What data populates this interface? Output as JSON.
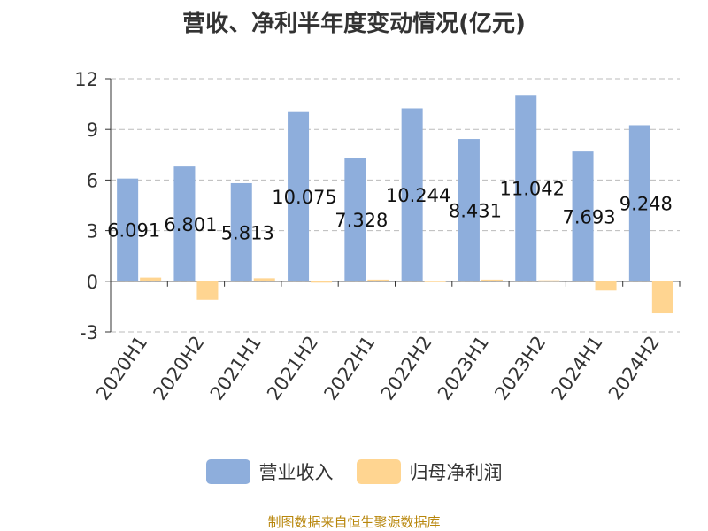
{
  "chart_data": {
    "type": "bar",
    "title": "营收、净利半年度变动情况(亿元)",
    "categories": [
      "2020H1",
      "2020H2",
      "2021H1",
      "2021H2",
      "2022H1",
      "2022H2",
      "2023H1",
      "2023H2",
      "2024H1",
      "2024H2"
    ],
    "series": [
      {
        "name": "营业收入",
        "color": "#8eaedc",
        "values": [
          6.091,
          6.801,
          5.813,
          10.075,
          7.328,
          10.244,
          8.431,
          11.042,
          7.693,
          9.248
        ],
        "labels": [
          "6.091",
          "6.801",
          "5.813",
          "10.075",
          "7.328",
          "10.244",
          "8.431",
          "11.042",
          "7.693",
          "9.248"
        ]
      },
      {
        "name": "归母净利润",
        "color": "#ffd591",
        "values": [
          0.22,
          -1.1,
          0.18,
          -0.08,
          0.1,
          0.03,
          0.1,
          0.06,
          -0.55,
          -1.9
        ]
      }
    ],
    "yticks": [
      "-3",
      "0",
      "3",
      "6",
      "9",
      "12"
    ],
    "ylim": [
      -3,
      12
    ],
    "grid": true,
    "legend": "bottom-center"
  },
  "source": "制图数据来自恒生聚源数据库"
}
